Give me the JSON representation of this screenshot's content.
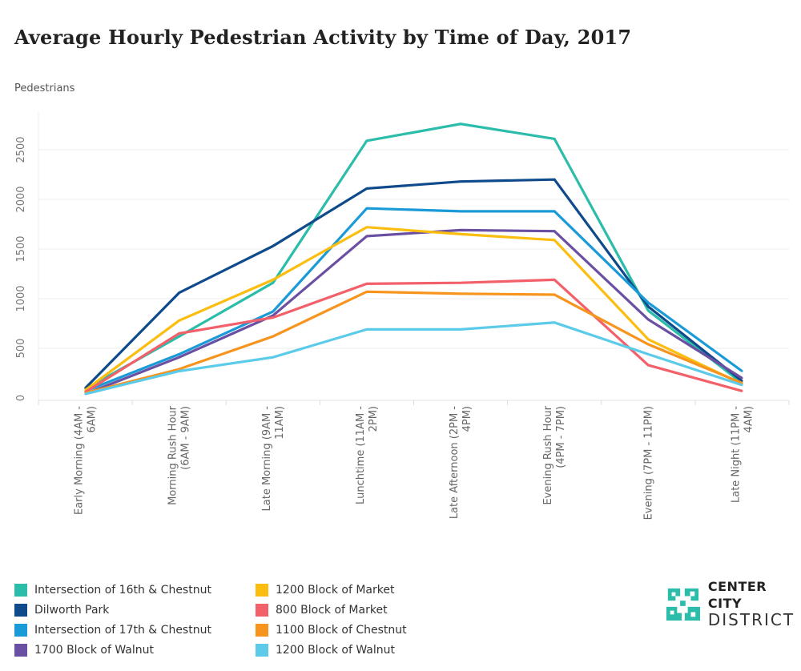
{
  "chart_data": {
    "type": "line",
    "title": "Average Hourly Pedestrian Activity by Time of Day, 2017",
    "ylabel": "Pedestrians",
    "xlabel": "",
    "ylim": [
      0,
      2850
    ],
    "yticks": [
      0,
      500,
      1000,
      1500,
      2000,
      2500
    ],
    "grid": true,
    "legend_placement": "bottom",
    "categories": [
      [
        "Early Morning (4AM -",
        "6AM)"
      ],
      [
        "Morning Rush Hour",
        "(6AM - 9AM)"
      ],
      [
        "Late Morning (9AM -",
        "11AM)"
      ],
      [
        "Lunchtime (11AM -",
        "2PM)"
      ],
      [
        "Late Afternoon (2PM -",
        "4PM)"
      ],
      [
        "Evening Rush Hour",
        "(4PM - 7PM)"
      ],
      [
        "Evening (7PM - 11PM)",
        ""
      ],
      [
        "Late Night (11PM -",
        "4AM)"
      ]
    ],
    "series": [
      {
        "name": "Intersection of 16th & Chestnut",
        "color": "#2bbcaa",
        "values": [
          90,
          620,
          1160,
          2590,
          2760,
          2610,
          880,
          150
        ]
      },
      {
        "name": "Dilworth Park",
        "color": "#0f4a8a",
        "values": [
          100,
          1060,
          1530,
          2110,
          2180,
          2200,
          920,
          170
        ]
      },
      {
        "name": "Intersection of 17th & Chestnut",
        "color": "#1a9ad6",
        "values": [
          70,
          440,
          870,
          1910,
          1880,
          1880,
          960,
          270
        ]
      },
      {
        "name": "1700 Block of Walnut",
        "color": "#6a4fa3",
        "values": [
          40,
          410,
          830,
          1630,
          1690,
          1680,
          790,
          200
        ]
      },
      {
        "name": "1200 Block of Market",
        "color": "#fbbd0f",
        "values": [
          80,
          780,
          1190,
          1720,
          1650,
          1590,
          590,
          140
        ]
      },
      {
        "name": "800 Block of Market",
        "color": "#f2606a",
        "values": [
          60,
          650,
          810,
          1150,
          1160,
          1190,
          330,
          70
        ]
      },
      {
        "name": "1100 Block of Chestnut",
        "color": "#f7941d",
        "values": [
          50,
          290,
          620,
          1070,
          1050,
          1040,
          540,
          150
        ]
      },
      {
        "name": "1200 Block of Walnut",
        "color": "#5ccbea",
        "values": [
          40,
          270,
          410,
          690,
          690,
          760,
          440,
          130
        ]
      }
    ]
  },
  "logo": {
    "line1": "CENTER CITY",
    "line2": "DISTRICT",
    "color": "#2bbcaa"
  }
}
